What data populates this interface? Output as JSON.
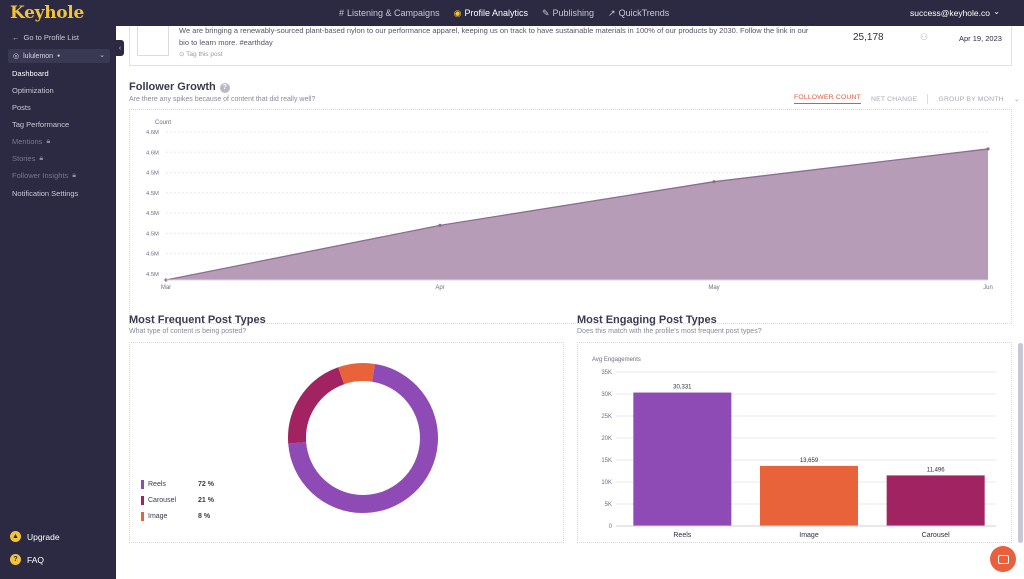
{
  "brand": {
    "logo": "Keyhole"
  },
  "topnav": [
    {
      "icon": "hash-icon",
      "glyph": "#",
      "label": "Listening & Campaigns",
      "active": false
    },
    {
      "icon": "profile-analytics-icon",
      "glyph": "◉",
      "label": "Profile Analytics",
      "active": true
    },
    {
      "icon": "publishing-icon",
      "glyph": "✎",
      "label": "Publishing",
      "active": false
    },
    {
      "icon": "quicktrends-icon",
      "glyph": "↗",
      "label": "QuickTrends",
      "active": false
    }
  ],
  "user": {
    "email": "success@keyhole.co"
  },
  "sidebar": {
    "back": "Go to Profile List",
    "profile": "lululemon",
    "items": [
      {
        "label": "Dashboard",
        "active": true,
        "locked": false
      },
      {
        "label": "Optimization",
        "active": false,
        "locked": false
      },
      {
        "label": "Posts",
        "active": false,
        "locked": false
      },
      {
        "label": "Tag Performance",
        "active": false,
        "locked": false
      },
      {
        "label": "Mentions",
        "active": false,
        "locked": true
      },
      {
        "label": "Stories",
        "active": false,
        "locked": true
      },
      {
        "label": "Follower Insights",
        "active": false,
        "locked": true
      },
      {
        "label": "Notification Settings",
        "active": false,
        "locked": false
      }
    ],
    "upgrade": "Upgrade",
    "faq": "FAQ"
  },
  "post": {
    "text_line1": "We are bringing a renewably-sourced plant-based nylon to our performance apparel, keeping us on track to have sustainable materials in 100% of our products by 2030. Follow the link in our",
    "text_line2": "bio to learn more. #earthday",
    "tag_link": "Tag this post",
    "count": "25,178",
    "date": "Apr 19, 2023"
  },
  "follower_growth": {
    "title": "Follower Growth",
    "subtitle": "Are there any spikes because of content that did really well?",
    "tabs": {
      "follower_count": "FOLLOWER COUNT",
      "net_change": "NET CHANGE",
      "group_by": "GROUP BY MONTH"
    }
  },
  "frequent": {
    "title": "Most Frequent Post Types",
    "subtitle": "What type of content is being posted?"
  },
  "engaging": {
    "title": "Most Engaging Post Types",
    "subtitle": "Does this match with the profile's most frequent post types?"
  },
  "chart_data": [
    {
      "type": "area",
      "title": "Follower Growth",
      "ylabel": "Count",
      "categories": [
        "Mar",
        "Apr",
        "May",
        "Jun"
      ],
      "y_tick_labels": [
        "4.6M",
        "4.6M",
        "4.5M",
        "4.5M",
        "4.5M",
        "4.5M",
        "4.5M",
        "4.5M"
      ],
      "values": [
        4.45,
        4.5,
        4.54,
        4.57
      ],
      "ylim": [
        4.45,
        4.58
      ],
      "color": "#b79cb7",
      "line_color": "#8c6d92"
    },
    {
      "type": "pie",
      "title": "Most Frequent Post Types",
      "series": [
        {
          "name": "Reels",
          "value": 72,
          "value_label": "72 %",
          "color": "#8e4bb5"
        },
        {
          "name": "Carousel",
          "value": 21,
          "value_label": "21 %",
          "color": "#a12362"
        },
        {
          "name": "Image",
          "value": 8,
          "value_label": "8 %",
          "color": "#e8633a"
        }
      ]
    },
    {
      "type": "bar",
      "title": "Most Engaging Post Types",
      "ylabel": "Avg Engagements",
      "categories": [
        "Reels",
        "Image",
        "Carousel"
      ],
      "values": [
        30331,
        13659,
        11496
      ],
      "value_labels": [
        "30,331",
        "13,659",
        "11,496"
      ],
      "colors": [
        "#8e4bb5",
        "#e8633a",
        "#a12362"
      ],
      "ylim": [
        0,
        35000
      ],
      "y_tick_labels": [
        "0",
        "5K",
        "10K",
        "15K",
        "20K",
        "25K",
        "30K",
        "35K"
      ]
    }
  ]
}
